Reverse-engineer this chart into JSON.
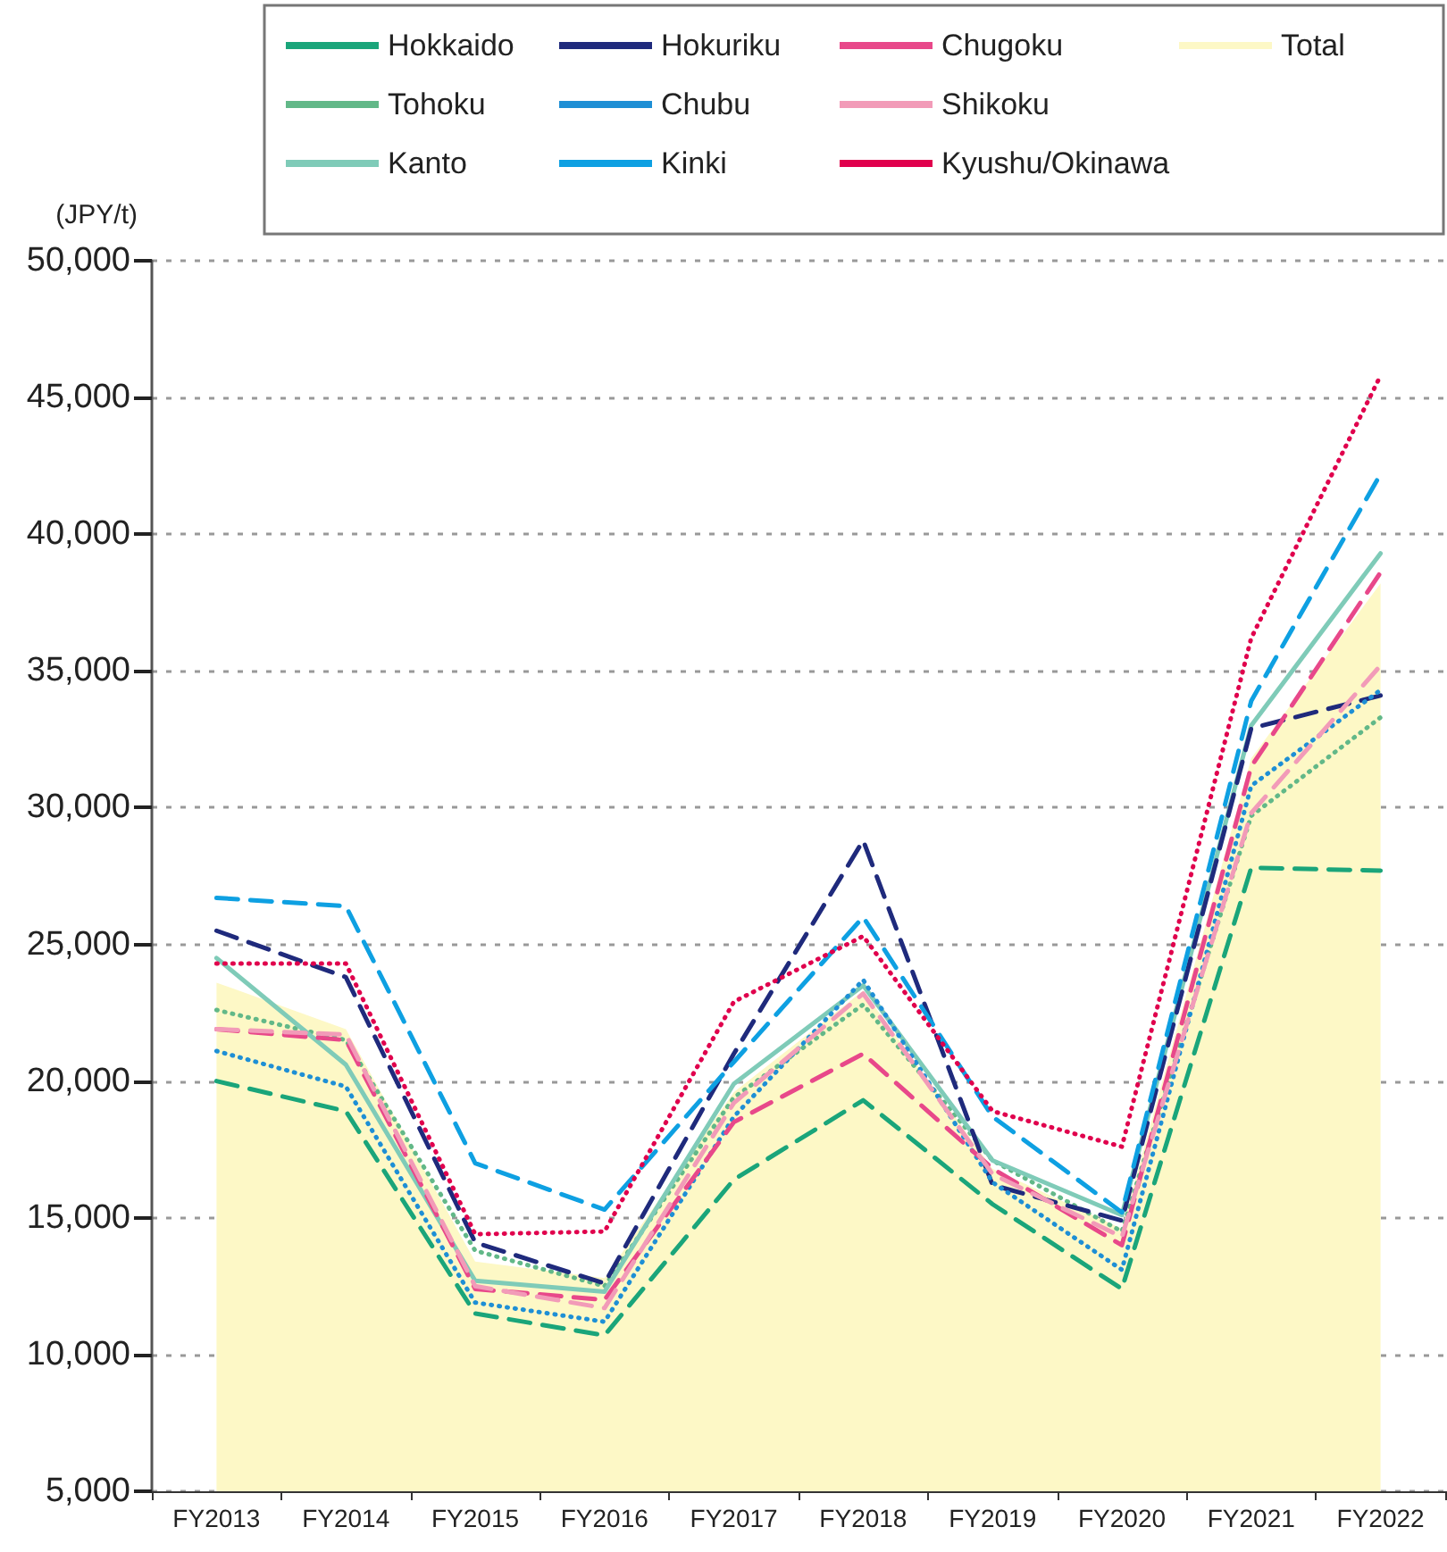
{
  "chart_data": {
    "type": "line",
    "ylabel": "(JPY/t)",
    "categories": [
      "FY2013",
      "FY2014",
      "FY2015",
      "FY2016",
      "FY2017",
      "FY2018",
      "FY2019",
      "FY2020",
      "FY2021",
      "FY2022"
    ],
    "series": [
      {
        "name": "Hokkaido",
        "color": "#1aa57a",
        "line_style": "dashed",
        "values": [
          20000,
          18900,
          11500,
          10700,
          16400,
          19300,
          15500,
          12400,
          27800,
          27700
        ]
      },
      {
        "name": "Tohoku",
        "color": "#62b888",
        "line_style": "dotted",
        "values": [
          22600,
          21500,
          13800,
          12500,
          19400,
          22800,
          17100,
          14500,
          29700,
          33300
        ]
      },
      {
        "name": "Kanto",
        "color": "#7fcbb8",
        "line_style": "solid",
        "values": [
          24500,
          20600,
          12700,
          12300,
          19900,
          23500,
          17100,
          15100,
          33000,
          39300
        ]
      },
      {
        "name": "Hokuriku",
        "color": "#1f2a7c",
        "line_style": "dashed",
        "values": [
          25500,
          23800,
          14100,
          12600,
          21000,
          28800,
          16200,
          14900,
          32900,
          34100
        ]
      },
      {
        "name": "Chubu",
        "color": "#1e8fd5",
        "line_style": "dotted",
        "values": [
          21100,
          19800,
          11900,
          11200,
          18700,
          23700,
          16300,
          13100,
          30800,
          34300
        ]
      },
      {
        "name": "Kinki",
        "color": "#0ea0e2",
        "line_style": "dashed",
        "values": [
          26700,
          26400,
          17000,
          15300,
          20700,
          26000,
          18700,
          15200,
          33900,
          42200
        ]
      },
      {
        "name": "Chugoku",
        "color": "#e8488a",
        "line_style": "dashed",
        "values": [
          21900,
          21500,
          12400,
          12000,
          18500,
          21000,
          16800,
          14000,
          31500,
          38600
        ]
      },
      {
        "name": "Shikoku",
        "color": "#f29bb8",
        "line_style": "dashed",
        "values": [
          21900,
          21700,
          12500,
          11700,
          19200,
          23200,
          16600,
          14300,
          29800,
          35200
        ]
      },
      {
        "name": "Kyushu/Okinawa",
        "color": "#e0004d",
        "line_style": "dotted",
        "values": [
          24300,
          24300,
          14400,
          14500,
          22900,
          25300,
          18900,
          17600,
          36200,
          45800
        ]
      },
      {
        "name": "Total",
        "type": "area",
        "color": "#fdf8c6",
        "values": [
          23600,
          21900,
          13400,
          12800,
          19600,
          23300,
          16800,
          14600,
          31800,
          38200
        ]
      }
    ],
    "ylim": [
      5000,
      50000
    ],
    "yticks": [
      {
        "value": 5000,
        "label": "5,000"
      },
      {
        "value": 10000,
        "label": "10,000"
      },
      {
        "value": 15000,
        "label": "15,000"
      },
      {
        "value": 20000,
        "label": "20,000"
      },
      {
        "value": 25000,
        "label": "25,000"
      },
      {
        "value": 30000,
        "label": "30,000"
      },
      {
        "value": 35000,
        "label": "35,000"
      },
      {
        "value": 40000,
        "label": "40,000"
      },
      {
        "value": 45000,
        "label": "45,000"
      },
      {
        "value": 50000,
        "label": "50,000"
      }
    ],
    "grid": "y",
    "legend": "top right",
    "marker": "none"
  }
}
